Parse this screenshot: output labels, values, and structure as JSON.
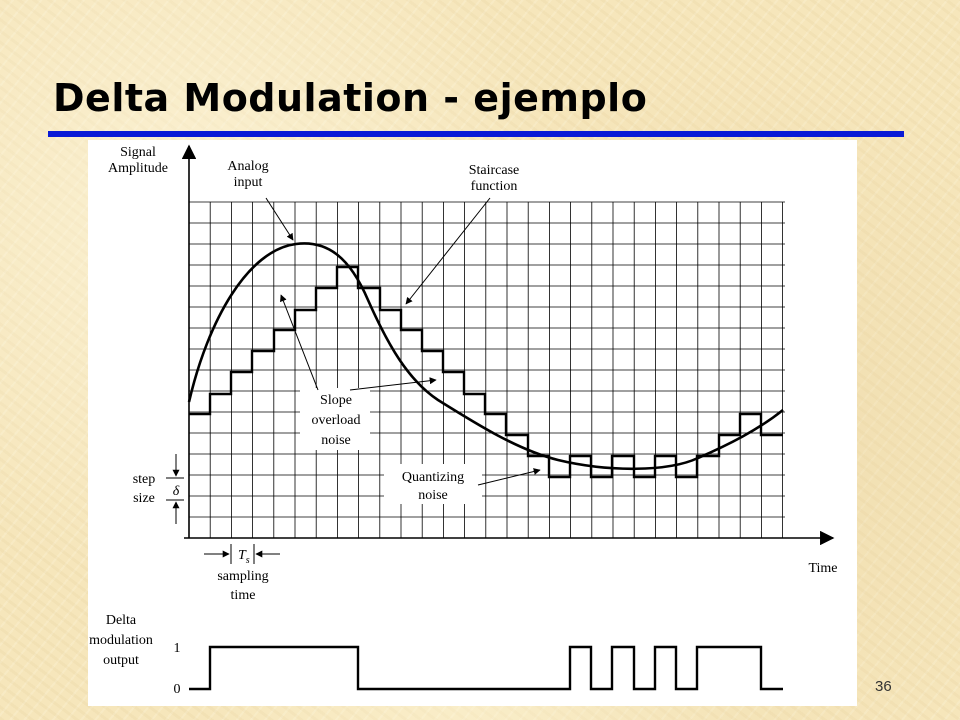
{
  "slide": {
    "title": "Delta Modulation - ejemplo",
    "page_number": "36",
    "accent_color": "#0a1ad6"
  },
  "figure": {
    "y_axis_label": [
      "Signal",
      "Amplitude"
    ],
    "x_axis_label": "Time",
    "annotations": {
      "analog_input": [
        "Analog",
        "input"
      ],
      "staircase_function": [
        "Staircase",
        "function"
      ],
      "slope_overload_noise": [
        "Slope",
        "overload",
        "noise"
      ],
      "quantizing_noise": [
        "Quantizing",
        "noise"
      ],
      "step_size": [
        "step",
        "size"
      ],
      "delta_symbol": "δ",
      "ts_symbol": "T",
      "ts_subscript": "s",
      "sampling_time": [
        "sampling",
        "time"
      ]
    },
    "output_panel": {
      "label": [
        "Delta",
        "modulation",
        "output"
      ],
      "level_high": "1",
      "level_low": "0"
    }
  }
}
